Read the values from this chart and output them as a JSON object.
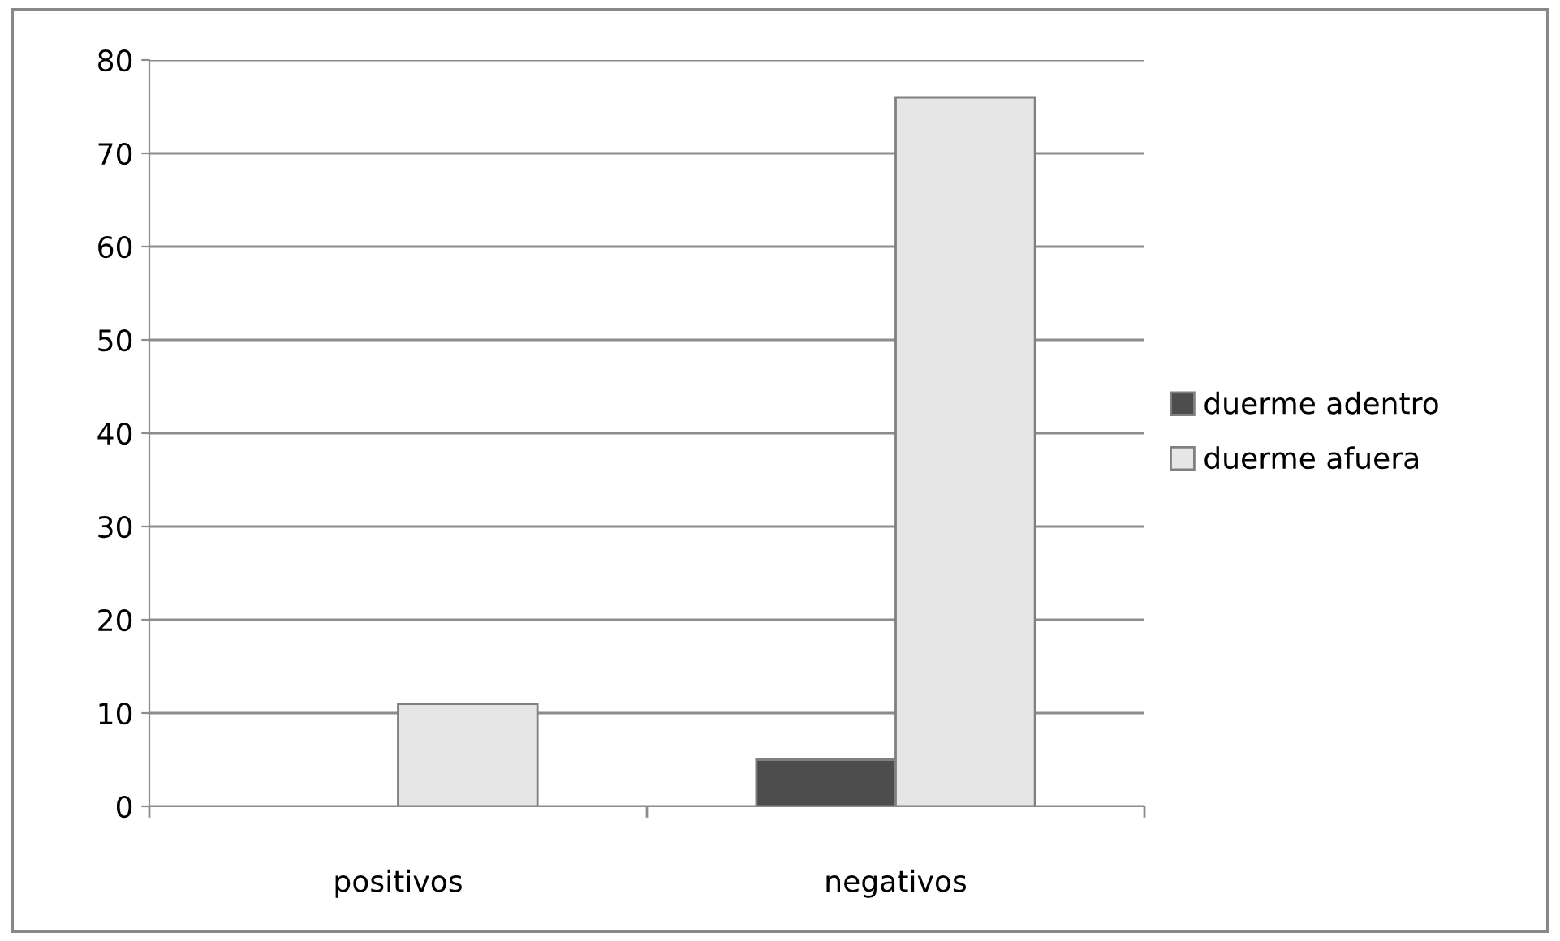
{
  "chart_data": {
    "type": "bar",
    "categories": [
      "positivos",
      "negativos"
    ],
    "series": [
      {
        "name": "duerme adentro",
        "color": "#4d4d4d",
        "values": [
          0,
          5
        ]
      },
      {
        "name": "duerme afuera",
        "color": "#e6e6e6",
        "values": [
          11,
          76
        ]
      }
    ],
    "ylim": [
      0,
      80
    ],
    "yticks": [
      0,
      10,
      20,
      30,
      40,
      50,
      60,
      70,
      80
    ],
    "grid": "y",
    "legend": "right"
  }
}
